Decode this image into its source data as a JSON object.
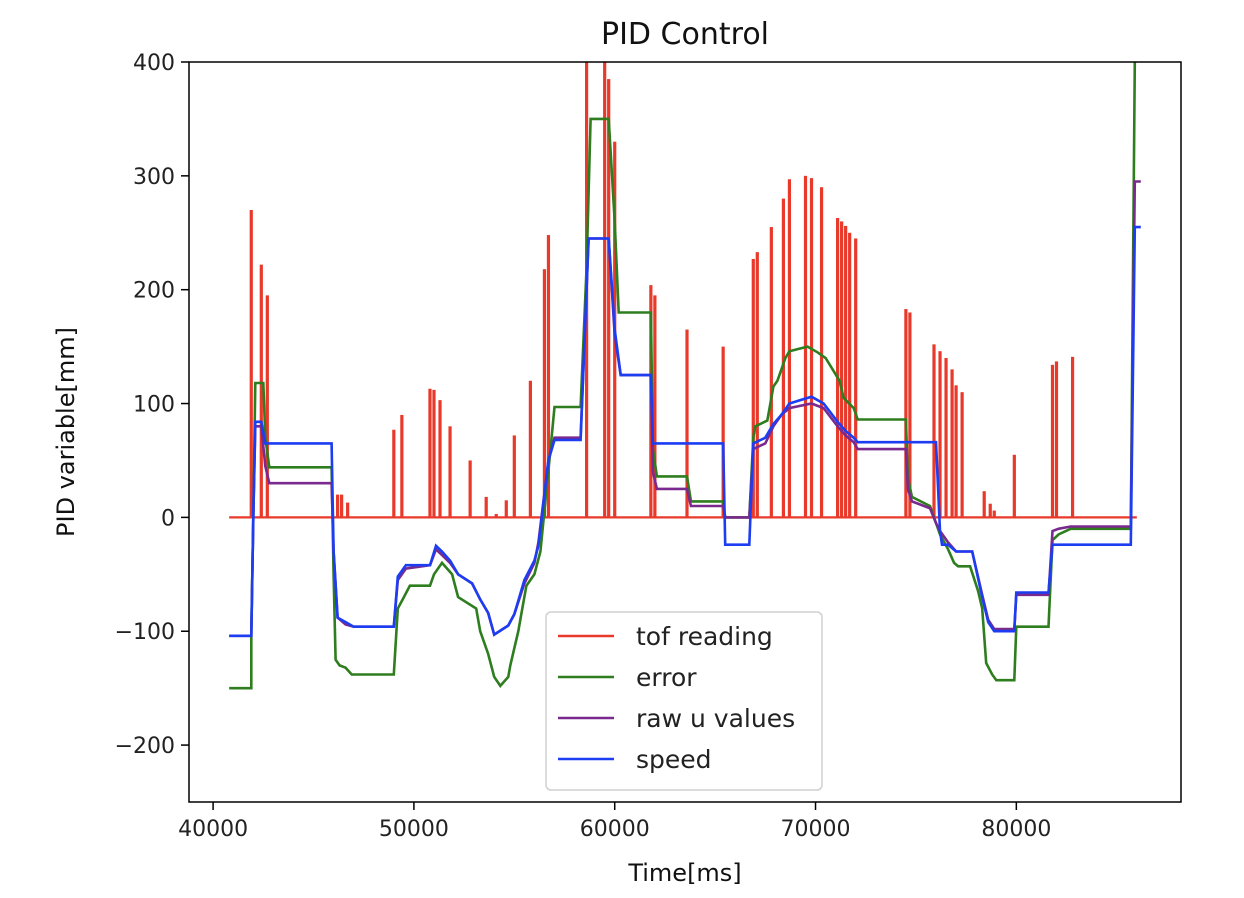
{
  "chart_data": {
    "type": "line",
    "title": "PID Control",
    "xlabel": "Time[ms]",
    "ylabel": "PID variable[mm]",
    "xlim": [
      38800,
      88200
    ],
    "ylim": [
      -250,
      400
    ],
    "xticks": [
      40000,
      50000,
      60000,
      70000,
      80000
    ],
    "yticks": [
      -200,
      -100,
      0,
      100,
      200,
      300,
      400
    ],
    "xtick_labels": [
      "40000",
      "50000",
      "60000",
      "70000",
      "80000"
    ],
    "ytick_labels": [
      "−200",
      "−100",
      "0",
      "100",
      "200",
      "300",
      "400"
    ],
    "legend_position": "lower-center",
    "grid": false,
    "series": [
      {
        "name": "tof reading",
        "color": "#e8392a",
        "baseline": [
          [
            40800,
            0
          ],
          [
            86000,
            0
          ]
        ],
        "spikes": [
          [
            41900,
            270
          ],
          [
            42400,
            222
          ],
          [
            42700,
            195
          ],
          [
            46200,
            20
          ],
          [
            46400,
            20
          ],
          [
            46700,
            13
          ],
          [
            49000,
            77
          ],
          [
            49400,
            90
          ],
          [
            50800,
            113
          ],
          [
            51000,
            112
          ],
          [
            51300,
            103
          ],
          [
            51800,
            80
          ],
          [
            52800,
            50
          ],
          [
            53600,
            18
          ],
          [
            54100,
            3
          ],
          [
            54600,
            15
          ],
          [
            55000,
            72
          ],
          [
            55800,
            120
          ],
          [
            56500,
            218
          ],
          [
            56700,
            248
          ],
          [
            58600,
            400
          ],
          [
            59500,
            400
          ],
          [
            59700,
            385
          ],
          [
            60000,
            330
          ],
          [
            61800,
            204
          ],
          [
            62000,
            195
          ],
          [
            63600,
            165
          ],
          [
            65400,
            150
          ],
          [
            66900,
            227
          ],
          [
            67100,
            233
          ],
          [
            67800,
            255
          ],
          [
            68400,
            280
          ],
          [
            68700,
            297
          ],
          [
            69500,
            300
          ],
          [
            69800,
            298
          ],
          [
            70300,
            290
          ],
          [
            71100,
            263
          ],
          [
            71300,
            260
          ],
          [
            71500,
            256
          ],
          [
            71700,
            250
          ],
          [
            72000,
            245
          ],
          [
            74500,
            183
          ],
          [
            74700,
            180
          ],
          [
            75900,
            152
          ],
          [
            76200,
            146
          ],
          [
            76500,
            140
          ],
          [
            76800,
            130
          ],
          [
            77000,
            116
          ],
          [
            77300,
            110
          ],
          [
            78400,
            23
          ],
          [
            78700,
            12
          ],
          [
            78900,
            6
          ],
          [
            79900,
            55
          ],
          [
            81800,
            134
          ],
          [
            82000,
            137
          ],
          [
            82800,
            141
          ]
        ]
      },
      {
        "name": "error",
        "color": "#2e7d1e",
        "points": [
          [
            40800,
            -150
          ],
          [
            41900,
            -150
          ],
          [
            41900,
            -100
          ],
          [
            42000,
            0
          ],
          [
            42100,
            118
          ],
          [
            42500,
            118
          ],
          [
            42600,
            70
          ],
          [
            42800,
            44
          ],
          [
            45900,
            44
          ],
          [
            46000,
            -50
          ],
          [
            46100,
            -125
          ],
          [
            46300,
            -130
          ],
          [
            46600,
            -132
          ],
          [
            46900,
            -138
          ],
          [
            49000,
            -138
          ],
          [
            49200,
            -80
          ],
          [
            49500,
            -70
          ],
          [
            49800,
            -60
          ],
          [
            50800,
            -60
          ],
          [
            51000,
            -50
          ],
          [
            51400,
            -40
          ],
          [
            51900,
            -50
          ],
          [
            52200,
            -70
          ],
          [
            53100,
            -80
          ],
          [
            53300,
            -100
          ],
          [
            53700,
            -120
          ],
          [
            54000,
            -140
          ],
          [
            54300,
            -148
          ],
          [
            54700,
            -140
          ],
          [
            54800,
            -130
          ],
          [
            55200,
            -100
          ],
          [
            55400,
            -80
          ],
          [
            55600,
            -60
          ],
          [
            56000,
            -50
          ],
          [
            56300,
            -30
          ],
          [
            56800,
            60
          ],
          [
            57000,
            97
          ],
          [
            58300,
            97
          ],
          [
            58600,
            220
          ],
          [
            58800,
            350
          ],
          [
            59700,
            350
          ],
          [
            60000,
            260
          ],
          [
            60200,
            180
          ],
          [
            61800,
            180
          ],
          [
            61900,
            60
          ],
          [
            62100,
            36
          ],
          [
            63600,
            36
          ],
          [
            63800,
            14
          ],
          [
            65400,
            14
          ],
          [
            65500,
            0
          ],
          [
            66700,
            0
          ],
          [
            66900,
            70
          ],
          [
            67000,
            80
          ],
          [
            67600,
            85
          ],
          [
            67900,
            115
          ],
          [
            68100,
            120
          ],
          [
            68300,
            130
          ],
          [
            68500,
            140
          ],
          [
            68700,
            146
          ],
          [
            69600,
            150
          ],
          [
            70100,
            145
          ],
          [
            70500,
            140
          ],
          [
            71200,
            120
          ],
          [
            71400,
            105
          ],
          [
            71900,
            96
          ],
          [
            72100,
            86
          ],
          [
            74500,
            86
          ],
          [
            74600,
            35
          ],
          [
            74800,
            18
          ],
          [
            75700,
            10
          ],
          [
            76000,
            -5
          ],
          [
            76200,
            -15
          ],
          [
            76600,
            -28
          ],
          [
            76900,
            -40
          ],
          [
            77100,
            -43
          ],
          [
            77700,
            -43
          ],
          [
            78100,
            -65
          ],
          [
            78300,
            -80
          ],
          [
            78500,
            -128
          ],
          [
            78800,
            -138
          ],
          [
            79000,
            -143
          ],
          [
            79900,
            -143
          ],
          [
            80000,
            -96
          ],
          [
            81600,
            -96
          ],
          [
            81800,
            -20
          ],
          [
            82100,
            -15
          ],
          [
            82700,
            -10
          ],
          [
            85700,
            -10
          ],
          [
            85900,
            400
          ]
        ]
      },
      {
        "name": "raw u values",
        "color": "#7a2a8e",
        "points": [
          [
            40800,
            -104
          ],
          [
            41900,
            -104
          ],
          [
            42000,
            0
          ],
          [
            42100,
            80
          ],
          [
            42400,
            80
          ],
          [
            42600,
            45
          ],
          [
            42800,
            30
          ],
          [
            45900,
            30
          ],
          [
            46000,
            -30
          ],
          [
            46200,
            -88
          ],
          [
            46600,
            -94
          ],
          [
            47000,
            -96
          ],
          [
            49000,
            -96
          ],
          [
            49200,
            -55
          ],
          [
            49600,
            -45
          ],
          [
            50800,
            -42
          ],
          [
            51100,
            -28
          ],
          [
            51400,
            -33
          ],
          [
            51800,
            -40
          ],
          [
            52200,
            -50
          ],
          [
            52900,
            -58
          ],
          [
            53300,
            -72
          ],
          [
            53700,
            -84
          ],
          [
            54000,
            -103
          ],
          [
            54700,
            -95
          ],
          [
            55000,
            -85
          ],
          [
            55500,
            -58
          ],
          [
            56000,
            -40
          ],
          [
            56200,
            -22
          ],
          [
            56700,
            50
          ],
          [
            57000,
            70
          ],
          [
            58300,
            70
          ],
          [
            58700,
            245
          ],
          [
            59700,
            245
          ],
          [
            60000,
            160
          ],
          [
            60300,
            125
          ],
          [
            61800,
            125
          ],
          [
            61900,
            40
          ],
          [
            62100,
            25
          ],
          [
            63600,
            25
          ],
          [
            63800,
            10
          ],
          [
            65400,
            10
          ],
          [
            65500,
            0
          ],
          [
            66700,
            0
          ],
          [
            66900,
            60
          ],
          [
            67500,
            65
          ],
          [
            67900,
            80
          ],
          [
            68300,
            90
          ],
          [
            68700,
            96
          ],
          [
            69800,
            100
          ],
          [
            70400,
            96
          ],
          [
            71100,
            80
          ],
          [
            71500,
            72
          ],
          [
            71900,
            66
          ],
          [
            72100,
            60
          ],
          [
            74500,
            60
          ],
          [
            74600,
            25
          ],
          [
            74800,
            14
          ],
          [
            75700,
            8
          ],
          [
            76000,
            -5
          ],
          [
            76200,
            -12
          ],
          [
            76600,
            -22
          ],
          [
            77000,
            -30
          ],
          [
            77800,
            -30
          ],
          [
            78300,
            -68
          ],
          [
            78600,
            -90
          ],
          [
            78900,
            -98
          ],
          [
            79900,
            -98
          ],
          [
            80000,
            -68
          ],
          [
            81600,
            -68
          ],
          [
            81800,
            -12
          ],
          [
            82100,
            -10
          ],
          [
            82700,
            -8
          ],
          [
            85700,
            -8
          ],
          [
            85900,
            295
          ],
          [
            86200,
            295
          ]
        ]
      },
      {
        "name": "speed",
        "color": "#1c3df2",
        "points": [
          [
            40800,
            -104
          ],
          [
            41900,
            -104
          ],
          [
            42000,
            0
          ],
          [
            42100,
            84
          ],
          [
            42400,
            84
          ],
          [
            42600,
            65
          ],
          [
            45900,
            65
          ],
          [
            46000,
            -30
          ],
          [
            46200,
            -88
          ],
          [
            46600,
            -92
          ],
          [
            47000,
            -96
          ],
          [
            49000,
            -96
          ],
          [
            49200,
            -52
          ],
          [
            49600,
            -42
          ],
          [
            50800,
            -42
          ],
          [
            51100,
            -25
          ],
          [
            51400,
            -30
          ],
          [
            51800,
            -38
          ],
          [
            52200,
            -50
          ],
          [
            52900,
            -58
          ],
          [
            53300,
            -72
          ],
          [
            53700,
            -84
          ],
          [
            54000,
            -103
          ],
          [
            54700,
            -95
          ],
          [
            55000,
            -85
          ],
          [
            55500,
            -55
          ],
          [
            56000,
            -38
          ],
          [
            56200,
            -25
          ],
          [
            56700,
            50
          ],
          [
            57000,
            68
          ],
          [
            58300,
            68
          ],
          [
            58700,
            245
          ],
          [
            59700,
            245
          ],
          [
            60000,
            165
          ],
          [
            60300,
            125
          ],
          [
            61800,
            125
          ],
          [
            61900,
            65
          ],
          [
            65400,
            65
          ],
          [
            65500,
            -24
          ],
          [
            66700,
            -24
          ],
          [
            66900,
            65
          ],
          [
            67500,
            70
          ],
          [
            67900,
            82
          ],
          [
            68300,
            90
          ],
          [
            68700,
            100
          ],
          [
            69800,
            106
          ],
          [
            70400,
            100
          ],
          [
            71100,
            84
          ],
          [
            71500,
            76
          ],
          [
            71900,
            70
          ],
          [
            72100,
            66
          ],
          [
            76000,
            66
          ],
          [
            76200,
            -12
          ],
          [
            76300,
            -24
          ],
          [
            76600,
            -24
          ],
          [
            77000,
            -30
          ],
          [
            77800,
            -30
          ],
          [
            78300,
            -70
          ],
          [
            78600,
            -92
          ],
          [
            78900,
            -100
          ],
          [
            79900,
            -100
          ],
          [
            80000,
            -66
          ],
          [
            81600,
            -66
          ],
          [
            81800,
            -24
          ],
          [
            85700,
            -24
          ],
          [
            85900,
            255
          ],
          [
            86200,
            255
          ]
        ]
      }
    ]
  }
}
